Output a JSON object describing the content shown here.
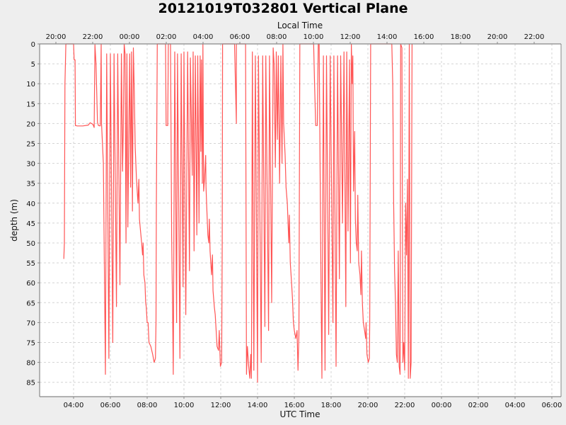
{
  "chart_data": {
    "type": "line",
    "title": "20121019T032801 Vertical Plane",
    "xlabel": "UTC Time",
    "x2label": "Local Time",
    "ylabel": "depth (m)",
    "yinverted": true,
    "ylim": [
      0,
      88.5
    ],
    "xlim_utc_hours": [
      2.2,
      30.55
    ],
    "grid": true,
    "legend": "none",
    "series_color": "#ff5555",
    "y_ticks": [
      0,
      5,
      10,
      15,
      20,
      25,
      30,
      35,
      40,
      45,
      50,
      55,
      60,
      65,
      70,
      75,
      80,
      85
    ],
    "x_ticks_utc": [
      {
        "h": 4,
        "label": "04:00"
      },
      {
        "h": 6,
        "label": "06:00"
      },
      {
        "h": 8,
        "label": "08:00"
      },
      {
        "h": 10,
        "label": "10:00"
      },
      {
        "h": 12,
        "label": "12:00"
      },
      {
        "h": 14,
        "label": "14:00"
      },
      {
        "h": 16,
        "label": "16:00"
      },
      {
        "h": 18,
        "label": "18:00"
      },
      {
        "h": 20,
        "label": "20:00"
      },
      {
        "h": 22,
        "label": "22:00"
      },
      {
        "h": 24,
        "label": "00:00"
      },
      {
        "h": 26,
        "label": "02:00"
      },
      {
        "h": 28,
        "label": "04:00"
      },
      {
        "h": 30,
        "label": "06:00"
      }
    ],
    "x_ticks_local": [
      {
        "h": 3,
        "label": "20:00"
      },
      {
        "h": 5,
        "label": "22:00"
      },
      {
        "h": 7,
        "label": "00:00"
      },
      {
        "h": 9,
        "label": "02:00"
      },
      {
        "h": 11,
        "label": "04:00"
      },
      {
        "h": 13,
        "label": "06:00"
      },
      {
        "h": 15,
        "label": "08:00"
      },
      {
        "h": 17,
        "label": "10:00"
      },
      {
        "h": 19,
        "label": "12:00"
      },
      {
        "h": 21,
        "label": "14:00"
      },
      {
        "h": 23,
        "label": "16:00"
      },
      {
        "h": 25,
        "label": "18:00"
      },
      {
        "h": 27,
        "label": "20:00"
      },
      {
        "h": 29,
        "label": "22:00"
      }
    ],
    "series": [
      {
        "name": "depth",
        "points": [
          [
            3.47,
            54
          ],
          [
            3.5,
            50
          ],
          [
            3.53,
            10
          ],
          [
            3.58,
            0
          ],
          [
            4.0,
            0
          ],
          [
            4.03,
            4
          ],
          [
            4.08,
            4
          ],
          [
            4.1,
            20.5
          ],
          [
            4.2,
            20.6
          ],
          [
            4.5,
            20.6
          ],
          [
            4.8,
            20.4
          ],
          [
            4.9,
            19.8
          ],
          [
            5.05,
            20.2
          ],
          [
            5.12,
            21
          ],
          [
            5.16,
            0.2
          ],
          [
            5.22,
            5
          ],
          [
            5.3,
            19.7
          ],
          [
            5.35,
            20.5
          ],
          [
            5.45,
            20.6
          ],
          [
            5.5,
            0
          ],
          [
            5.52,
            20
          ],
          [
            5.62,
            30
          ],
          [
            5.73,
            83
          ],
          [
            5.8,
            2.5
          ],
          [
            5.92,
            79
          ],
          [
            6.0,
            2.5
          ],
          [
            6.13,
            75
          ],
          [
            6.2,
            2.5
          ],
          [
            6.33,
            66
          ],
          [
            6.4,
            2.5
          ],
          [
            6.52,
            60.5
          ],
          [
            6.6,
            2.5
          ],
          [
            6.66,
            32
          ],
          [
            6.7,
            22
          ],
          [
            6.75,
            0
          ],
          [
            6.8,
            2.5
          ],
          [
            6.85,
            50
          ],
          [
            6.9,
            2.5
          ],
          [
            6.95,
            46
          ],
          [
            7.0,
            24
          ],
          [
            7.05,
            2.5
          ],
          [
            7.1,
            36
          ],
          [
            7.15,
            2
          ],
          [
            7.2,
            42
          ],
          [
            7.25,
            1
          ],
          [
            7.3,
            12
          ],
          [
            7.35,
            26
          ],
          [
            7.42,
            34
          ],
          [
            7.5,
            40
          ],
          [
            7.55,
            34
          ],
          [
            7.58,
            44
          ],
          [
            7.62,
            46
          ],
          [
            7.7,
            50
          ],
          [
            7.75,
            53
          ],
          [
            7.78,
            50
          ],
          [
            7.82,
            58
          ],
          [
            7.88,
            60
          ],
          [
            7.92,
            65
          ],
          [
            7.95,
            66
          ],
          [
            8.0,
            70
          ],
          [
            8.05,
            70
          ],
          [
            8.1,
            75
          ],
          [
            8.2,
            76
          ],
          [
            8.3,
            78
          ],
          [
            8.38,
            80
          ],
          [
            8.45,
            79
          ],
          [
            8.48,
            70
          ],
          [
            8.5,
            41
          ],
          [
            8.55,
            0
          ],
          [
            8.6,
            0
          ],
          [
            9.0,
            0
          ],
          [
            9.03,
            20.5
          ],
          [
            9.12,
            20.5
          ],
          [
            9.15,
            0
          ],
          [
            9.27,
            0
          ],
          [
            9.33,
            48
          ],
          [
            9.38,
            66
          ],
          [
            9.42,
            83
          ],
          [
            9.5,
            2
          ],
          [
            9.6,
            70
          ],
          [
            9.65,
            2.5
          ],
          [
            9.78,
            79
          ],
          [
            9.85,
            2.5
          ],
          [
            9.95,
            61
          ],
          [
            10.0,
            2
          ],
          [
            10.1,
            68
          ],
          [
            10.2,
            2
          ],
          [
            10.3,
            57
          ],
          [
            10.35,
            3.5
          ],
          [
            10.45,
            33
          ],
          [
            10.5,
            2
          ],
          [
            10.55,
            52
          ],
          [
            10.62,
            3
          ],
          [
            10.7,
            48
          ],
          [
            10.75,
            3
          ],
          [
            10.82,
            45
          ],
          [
            10.88,
            3
          ],
          [
            10.92,
            27
          ],
          [
            10.95,
            4
          ],
          [
            11.0,
            35
          ],
          [
            11.03,
            0
          ],
          [
            11.07,
            37
          ],
          [
            11.12,
            34
          ],
          [
            11.18,
            28
          ],
          [
            11.2,
            36
          ],
          [
            11.23,
            40
          ],
          [
            11.3,
            48
          ],
          [
            11.35,
            50
          ],
          [
            11.38,
            44
          ],
          [
            11.42,
            52
          ],
          [
            11.5,
            58
          ],
          [
            11.55,
            53
          ],
          [
            11.58,
            62
          ],
          [
            11.65,
            66
          ],
          [
            11.7,
            68
          ],
          [
            11.75,
            72
          ],
          [
            11.8,
            76
          ],
          [
            11.88,
            77
          ],
          [
            11.92,
            72
          ],
          [
            11.98,
            81
          ],
          [
            12.05,
            80
          ],
          [
            12.08,
            50
          ],
          [
            12.1,
            0
          ],
          [
            12.75,
            0
          ],
          [
            12.8,
            10
          ],
          [
            12.85,
            20
          ],
          [
            12.85,
            0
          ],
          [
            13.35,
            0
          ],
          [
            13.4,
            83
          ],
          [
            13.45,
            76
          ],
          [
            13.52,
            81
          ],
          [
            13.58,
            84
          ],
          [
            13.63,
            78
          ],
          [
            13.67,
            84
          ],
          [
            13.72,
            2
          ],
          [
            13.8,
            82
          ],
          [
            13.88,
            3
          ],
          [
            14.0,
            85
          ],
          [
            14.05,
            3
          ],
          [
            14.2,
            80
          ],
          [
            14.28,
            3
          ],
          [
            14.4,
            71
          ],
          [
            14.45,
            3
          ],
          [
            14.6,
            72
          ],
          [
            14.65,
            3
          ],
          [
            14.77,
            65
          ],
          [
            14.85,
            1
          ],
          [
            14.9,
            5
          ],
          [
            14.97,
            31
          ],
          [
            15.02,
            2
          ],
          [
            15.08,
            24
          ],
          [
            15.13,
            3
          ],
          [
            15.2,
            35
          ],
          [
            15.27,
            3
          ],
          [
            15.33,
            30
          ],
          [
            15.38,
            0
          ],
          [
            15.42,
            20
          ],
          [
            15.5,
            28
          ],
          [
            15.55,
            36
          ],
          [
            15.62,
            40
          ],
          [
            15.7,
            50
          ],
          [
            15.73,
            43
          ],
          [
            15.78,
            55
          ],
          [
            15.85,
            60
          ],
          [
            15.9,
            64
          ],
          [
            15.95,
            70
          ],
          [
            16.0,
            72
          ],
          [
            16.08,
            74
          ],
          [
            16.15,
            72
          ],
          [
            16.2,
            82
          ],
          [
            16.25,
            73
          ],
          [
            16.3,
            0
          ],
          [
            16.4,
            0
          ],
          [
            17.05,
            0
          ],
          [
            17.1,
            10
          ],
          [
            17.16,
            20.5
          ],
          [
            17.25,
            20.5
          ],
          [
            17.3,
            0
          ],
          [
            17.35,
            0
          ],
          [
            17.45,
            60
          ],
          [
            17.5,
            84
          ],
          [
            17.58,
            3
          ],
          [
            17.67,
            82
          ],
          [
            17.75,
            3
          ],
          [
            17.87,
            73
          ],
          [
            17.95,
            3
          ],
          [
            18.1,
            70
          ],
          [
            18.15,
            3
          ],
          [
            18.27,
            81
          ],
          [
            18.35,
            3
          ],
          [
            18.45,
            59
          ],
          [
            18.52,
            3
          ],
          [
            18.62,
            45
          ],
          [
            18.7,
            2
          ],
          [
            18.8,
            66
          ],
          [
            18.85,
            2
          ],
          [
            18.92,
            47
          ],
          [
            19.0,
            4
          ],
          [
            19.05,
            55
          ],
          [
            19.1,
            0
          ],
          [
            19.15,
            10
          ],
          [
            19.18,
            3
          ],
          [
            19.22,
            37
          ],
          [
            19.28,
            22
          ],
          [
            19.32,
            44
          ],
          [
            19.37,
            50
          ],
          [
            19.42,
            52
          ],
          [
            19.45,
            38
          ],
          [
            19.5,
            55
          ],
          [
            19.57,
            58
          ],
          [
            19.62,
            63
          ],
          [
            19.65,
            52
          ],
          [
            19.7,
            65
          ],
          [
            19.75,
            70
          ],
          [
            19.82,
            72
          ],
          [
            19.88,
            74
          ],
          [
            19.9,
            70
          ],
          [
            19.95,
            78
          ],
          [
            20.02,
            80
          ],
          [
            20.08,
            79
          ],
          [
            20.1,
            70
          ],
          [
            20.15,
            0
          ],
          [
            20.2,
            0
          ],
          [
            21.3,
            0
          ],
          [
            21.35,
            10
          ],
          [
            21.4,
            40
          ],
          [
            21.45,
            57
          ],
          [
            21.5,
            65
          ],
          [
            21.55,
            78
          ],
          [
            21.6,
            80
          ],
          [
            21.65,
            52
          ],
          [
            21.7,
            81
          ],
          [
            21.75,
            83
          ],
          [
            21.78,
            0
          ],
          [
            21.85,
            1
          ],
          [
            21.9,
            80
          ],
          [
            21.95,
            75
          ],
          [
            22.0,
            82
          ],
          [
            22.05,
            40
          ],
          [
            22.1,
            53
          ],
          [
            22.15,
            34
          ],
          [
            22.2,
            84
          ],
          [
            22.25,
            0
          ],
          [
            22.3,
            84
          ],
          [
            22.35,
            80
          ],
          [
            22.4,
            0
          ]
        ],
        "note": "approximate digitization of dense dive profile; values in [utc_hours, depth_m]"
      }
    ]
  }
}
